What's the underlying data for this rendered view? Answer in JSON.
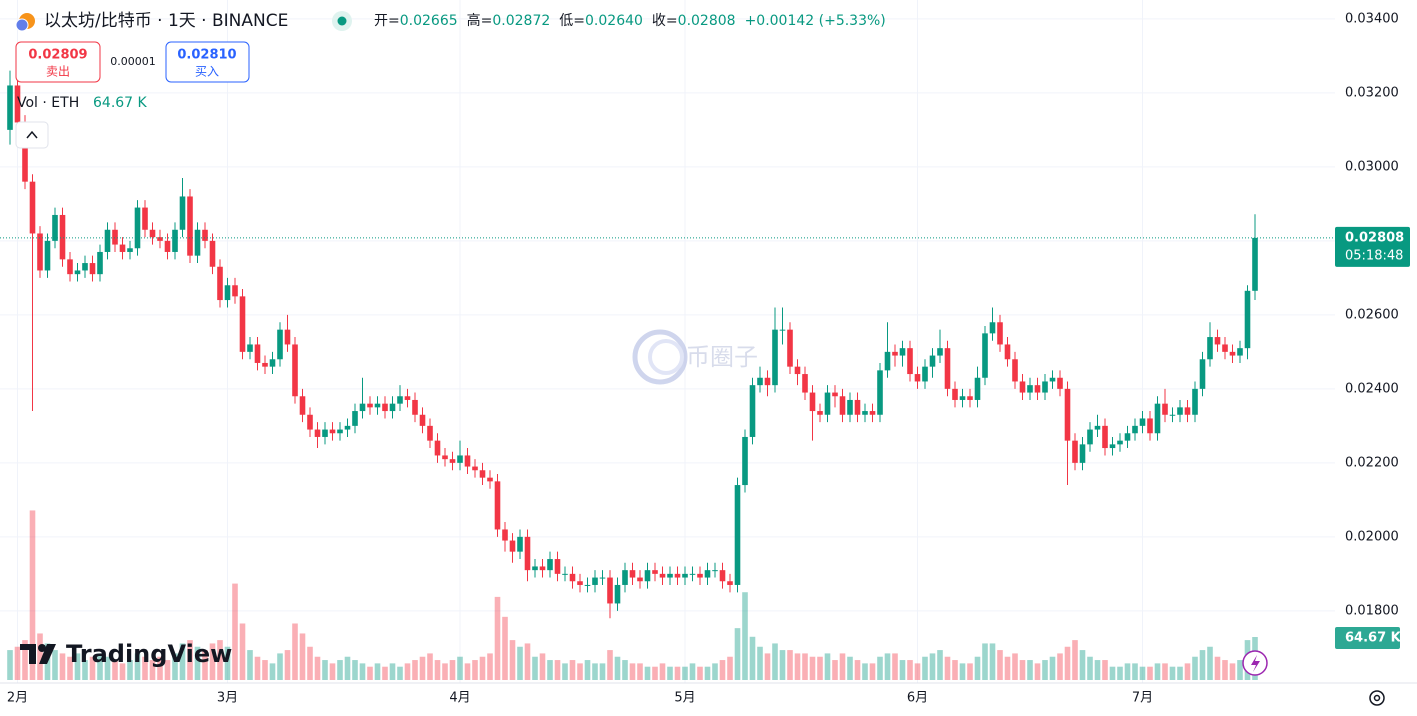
{
  "header": {
    "symbol": "以太坊/比特币 · 1天 · BINANCE",
    "ohlc": [
      {
        "label": "开=",
        "value": "0.02665"
      },
      {
        "label": "高=",
        "value": "0.02872"
      },
      {
        "label": "低=",
        "value": "0.02640"
      },
      {
        "label": "收=",
        "value": "0.02808"
      }
    ],
    "change": "+0.00142 (+5.33%)",
    "sell": {
      "price": "0.02809",
      "label": "卖出"
    },
    "spread": "0.00001",
    "buy": {
      "price": "0.02810",
      "label": "买入"
    }
  },
  "watermark": "币圈子",
  "brand": "TradingView",
  "chart_data": {
    "type": "candlestick",
    "ylim": [
      0.01605,
      0.03451
    ],
    "yticks": [
      {
        "value": 0.034,
        "label": "0.03400"
      },
      {
        "value": 0.032,
        "label": "0.03200"
      },
      {
        "value": 0.03,
        "label": "0.03000"
      },
      {
        "value": 0.028,
        "label": "0.02800"
      },
      {
        "value": 0.026,
        "label": "0.02600"
      },
      {
        "value": 0.024,
        "label": "0.02400"
      },
      {
        "value": 0.022,
        "label": "0.02200"
      },
      {
        "value": 0.02,
        "label": "0.02000"
      },
      {
        "value": 0.018,
        "label": "0.01800"
      }
    ],
    "xticks": [
      {
        "value": 1,
        "label": "2月"
      },
      {
        "value": 29,
        "label": "3月"
      },
      {
        "value": 60,
        "label": "4月"
      },
      {
        "value": 90,
        "label": "5月"
      },
      {
        "value": 121,
        "label": "6月"
      },
      {
        "value": 151,
        "label": "7月"
      }
    ],
    "grid": true,
    "up_color": "#089981",
    "down_color": "#f23645",
    "countdown": "05:18:48",
    "ohlc": [
      [
        0.031,
        0.0326,
        0.0306,
        0.0322
      ],
      [
        0.0322,
        0.0324,
        0.031,
        0.0312
      ],
      [
        0.0312,
        0.0314,
        0.0294,
        0.0296
      ],
      [
        0.0296,
        0.0298,
        0.0234,
        0.0282
      ],
      [
        0.0282,
        0.0284,
        0.027,
        0.0272
      ],
      [
        0.0272,
        0.0282,
        0.027,
        0.028
      ],
      [
        0.028,
        0.0289,
        0.0278,
        0.0287
      ],
      [
        0.0287,
        0.0289,
        0.0273,
        0.0275
      ],
      [
        0.0275,
        0.0277,
        0.0269,
        0.0271
      ],
      [
        0.0271,
        0.0274,
        0.0269,
        0.0272
      ],
      [
        0.0272,
        0.0276,
        0.027,
        0.0274
      ],
      [
        0.0274,
        0.0276,
        0.0269,
        0.0271
      ],
      [
        0.0271,
        0.0279,
        0.0269,
        0.0277
      ],
      [
        0.0277,
        0.0285,
        0.0275,
        0.0283
      ],
      [
        0.0283,
        0.0285,
        0.0277,
        0.0279
      ],
      [
        0.0279,
        0.0281,
        0.0275,
        0.0277
      ],
      [
        0.0277,
        0.028,
        0.0275,
        0.0278
      ],
      [
        0.0278,
        0.0291,
        0.0276,
        0.0289
      ],
      [
        0.0289,
        0.0291,
        0.0281,
        0.0283
      ],
      [
        0.0283,
        0.0285,
        0.0279,
        0.0281
      ],
      [
        0.0281,
        0.0283,
        0.0278,
        0.028
      ],
      [
        0.028,
        0.0282,
        0.0275,
        0.0277
      ],
      [
        0.0277,
        0.0285,
        0.0275,
        0.0283
      ],
      [
        0.0283,
        0.0297,
        0.0281,
        0.0292
      ],
      [
        0.0292,
        0.0294,
        0.0274,
        0.0276
      ],
      [
        0.0276,
        0.0285,
        0.0274,
        0.0283
      ],
      [
        0.0283,
        0.0285,
        0.0278,
        0.028
      ],
      [
        0.028,
        0.0282,
        0.0271,
        0.0273
      ],
      [
        0.0273,
        0.0275,
        0.0262,
        0.0264
      ],
      [
        0.0264,
        0.027,
        0.0262,
        0.0268
      ],
      [
        0.0268,
        0.027,
        0.0263,
        0.0265
      ],
      [
        0.0265,
        0.0267,
        0.0248,
        0.025
      ],
      [
        0.025,
        0.0254,
        0.0248,
        0.0252
      ],
      [
        0.0252,
        0.0254,
        0.0245,
        0.0247
      ],
      [
        0.0247,
        0.0249,
        0.0244,
        0.0246
      ],
      [
        0.0246,
        0.025,
        0.0244,
        0.0248
      ],
      [
        0.0248,
        0.0258,
        0.0246,
        0.0256
      ],
      [
        0.0256,
        0.026,
        0.025,
        0.0252
      ],
      [
        0.0252,
        0.0254,
        0.0236,
        0.0238
      ],
      [
        0.0238,
        0.024,
        0.0231,
        0.0233
      ],
      [
        0.0233,
        0.0235,
        0.0227,
        0.0229
      ],
      [
        0.0229,
        0.0231,
        0.0224,
        0.0227
      ],
      [
        0.0227,
        0.0231,
        0.0225,
        0.0229
      ],
      [
        0.0229,
        0.0231,
        0.0226,
        0.0228
      ],
      [
        0.0228,
        0.0231,
        0.0226,
        0.0229
      ],
      [
        0.0229,
        0.0232,
        0.0227,
        0.023
      ],
      [
        0.023,
        0.0236,
        0.0228,
        0.0234
      ],
      [
        0.0234,
        0.0243,
        0.0232,
        0.0236
      ],
      [
        0.0236,
        0.0238,
        0.0233,
        0.0235
      ],
      [
        0.0235,
        0.0238,
        0.0233,
        0.0236
      ],
      [
        0.0236,
        0.0238,
        0.0232,
        0.0234
      ],
      [
        0.0234,
        0.0238,
        0.0232,
        0.0236
      ],
      [
        0.0236,
        0.0241,
        0.0234,
        0.0238
      ],
      [
        0.0238,
        0.024,
        0.0235,
        0.0237
      ],
      [
        0.0237,
        0.0239,
        0.0231,
        0.0233
      ],
      [
        0.0233,
        0.0235,
        0.0228,
        0.023
      ],
      [
        0.023,
        0.0232,
        0.0224,
        0.0226
      ],
      [
        0.0226,
        0.0228,
        0.022,
        0.0222
      ],
      [
        0.0222,
        0.0224,
        0.0219,
        0.0221
      ],
      [
        0.0221,
        0.0223,
        0.0218,
        0.022
      ],
      [
        0.022,
        0.0226,
        0.0218,
        0.0222
      ],
      [
        0.0222,
        0.0224,
        0.0217,
        0.0219
      ],
      [
        0.0219,
        0.0221,
        0.0216,
        0.0218
      ],
      [
        0.0218,
        0.022,
        0.0214,
        0.0216
      ],
      [
        0.0216,
        0.0218,
        0.0213,
        0.0215
      ],
      [
        0.0215,
        0.0217,
        0.02,
        0.0202
      ],
      [
        0.0202,
        0.0204,
        0.0196,
        0.0199
      ],
      [
        0.0199,
        0.0201,
        0.0193,
        0.0196
      ],
      [
        0.0196,
        0.0202,
        0.0194,
        0.02
      ],
      [
        0.02,
        0.0202,
        0.0188,
        0.0191
      ],
      [
        0.0191,
        0.0194,
        0.0189,
        0.0192
      ],
      [
        0.0192,
        0.0194,
        0.0189,
        0.0191
      ],
      [
        0.0191,
        0.0196,
        0.0189,
        0.0194
      ],
      [
        0.0194,
        0.0196,
        0.0188,
        0.019
      ],
      [
        0.019,
        0.0192,
        0.0188,
        0.019
      ],
      [
        0.019,
        0.0192,
        0.0186,
        0.0188
      ],
      [
        0.0188,
        0.019,
        0.0185,
        0.0187
      ],
      [
        0.0187,
        0.0189,
        0.0185,
        0.0187
      ],
      [
        0.0187,
        0.0191,
        0.0185,
        0.0189
      ],
      [
        0.0189,
        0.0191,
        0.0187,
        0.0189
      ],
      [
        0.0189,
        0.0191,
        0.0178,
        0.0182
      ],
      [
        0.0182,
        0.0189,
        0.018,
        0.0187
      ],
      [
        0.0187,
        0.0193,
        0.0185,
        0.0191
      ],
      [
        0.0191,
        0.0193,
        0.0187,
        0.0189
      ],
      [
        0.0189,
        0.0191,
        0.0186,
        0.0188
      ],
      [
        0.0188,
        0.0193,
        0.0186,
        0.0191
      ],
      [
        0.0191,
        0.0193,
        0.0188,
        0.019
      ],
      [
        0.019,
        0.0192,
        0.0187,
        0.0189
      ],
      [
        0.0189,
        0.0192,
        0.0187,
        0.019
      ],
      [
        0.019,
        0.0192,
        0.0187,
        0.0189
      ],
      [
        0.0189,
        0.0192,
        0.0187,
        0.019
      ],
      [
        0.019,
        0.0192,
        0.0188,
        0.019
      ],
      [
        0.019,
        0.0192,
        0.0187,
        0.0189
      ],
      [
        0.0189,
        0.0193,
        0.0187,
        0.0191
      ],
      [
        0.0191,
        0.0193,
        0.0189,
        0.0191
      ],
      [
        0.0191,
        0.0193,
        0.0186,
        0.0188
      ],
      [
        0.0188,
        0.019,
        0.0185,
        0.0187
      ],
      [
        0.0187,
        0.0216,
        0.0185,
        0.0214
      ],
      [
        0.0214,
        0.0229,
        0.0212,
        0.0227
      ],
      [
        0.0227,
        0.0243,
        0.0225,
        0.0241
      ],
      [
        0.0241,
        0.0246,
        0.0239,
        0.0243
      ],
      [
        0.0243,
        0.0245,
        0.0238,
        0.0241
      ],
      [
        0.0241,
        0.0262,
        0.0239,
        0.0256
      ],
      [
        0.0256,
        0.0262,
        0.0252,
        0.0256
      ],
      [
        0.0256,
        0.0258,
        0.0244,
        0.0246
      ],
      [
        0.0246,
        0.0248,
        0.0241,
        0.0244
      ],
      [
        0.0244,
        0.0246,
        0.0237,
        0.0239
      ],
      [
        0.0239,
        0.0241,
        0.0226,
        0.0234
      ],
      [
        0.0234,
        0.0236,
        0.0231,
        0.0233
      ],
      [
        0.0233,
        0.0241,
        0.0231,
        0.0239
      ],
      [
        0.0239,
        0.0241,
        0.0235,
        0.0238
      ],
      [
        0.0238,
        0.024,
        0.0231,
        0.0233
      ],
      [
        0.0233,
        0.0239,
        0.0231,
        0.0237
      ],
      [
        0.0237,
        0.0239,
        0.0231,
        0.0233
      ],
      [
        0.0233,
        0.0236,
        0.0231,
        0.0234
      ],
      [
        0.0234,
        0.0236,
        0.0231,
        0.0233
      ],
      [
        0.0233,
        0.0247,
        0.0231,
        0.0245
      ],
      [
        0.0245,
        0.0258,
        0.0243,
        0.025
      ],
      [
        0.025,
        0.0252,
        0.0246,
        0.0249
      ],
      [
        0.0249,
        0.0253,
        0.0246,
        0.0251
      ],
      [
        0.0251,
        0.0253,
        0.0242,
        0.0244
      ],
      [
        0.0244,
        0.0246,
        0.024,
        0.0242
      ],
      [
        0.0242,
        0.0248,
        0.024,
        0.0246
      ],
      [
        0.0246,
        0.0251,
        0.0243,
        0.0249
      ],
      [
        0.0249,
        0.0256,
        0.0247,
        0.0251
      ],
      [
        0.0251,
        0.0253,
        0.0238,
        0.024
      ],
      [
        0.024,
        0.0242,
        0.0235,
        0.0237
      ],
      [
        0.0237,
        0.024,
        0.0235,
        0.0238
      ],
      [
        0.0238,
        0.024,
        0.0235,
        0.0237
      ],
      [
        0.0237,
        0.0246,
        0.0235,
        0.0243
      ],
      [
        0.0243,
        0.0257,
        0.0241,
        0.0255
      ],
      [
        0.0255,
        0.0262,
        0.0253,
        0.0258
      ],
      [
        0.0258,
        0.026,
        0.025,
        0.0252
      ],
      [
        0.0252,
        0.0254,
        0.0246,
        0.0248
      ],
      [
        0.0248,
        0.025,
        0.024,
        0.0242
      ],
      [
        0.0242,
        0.0244,
        0.0237,
        0.0239
      ],
      [
        0.0239,
        0.0243,
        0.0237,
        0.0241
      ],
      [
        0.0241,
        0.0243,
        0.0237,
        0.0239
      ],
      [
        0.0239,
        0.0244,
        0.0237,
        0.0242
      ],
      [
        0.0242,
        0.0245,
        0.024,
        0.0243
      ],
      [
        0.0243,
        0.0245,
        0.0238,
        0.024
      ],
      [
        0.024,
        0.0242,
        0.0214,
        0.0226
      ],
      [
        0.0226,
        0.0228,
        0.0218,
        0.022
      ],
      [
        0.022,
        0.0227,
        0.0218,
        0.0225
      ],
      [
        0.0225,
        0.0231,
        0.0223,
        0.0229
      ],
      [
        0.0229,
        0.0233,
        0.0227,
        0.023
      ],
      [
        0.023,
        0.0232,
        0.0222,
        0.0224
      ],
      [
        0.0224,
        0.0227,
        0.0222,
        0.0225
      ],
      [
        0.0225,
        0.0228,
        0.0223,
        0.0226
      ],
      [
        0.0226,
        0.023,
        0.0224,
        0.0228
      ],
      [
        0.0228,
        0.0232,
        0.0226,
        0.023
      ],
      [
        0.023,
        0.0234,
        0.0228,
        0.0232
      ],
      [
        0.0232,
        0.0234,
        0.0226,
        0.0228
      ],
      [
        0.0228,
        0.0238,
        0.0226,
        0.0236
      ],
      [
        0.0236,
        0.024,
        0.0231,
        0.0233
      ],
      [
        0.0233,
        0.0235,
        0.0231,
        0.0233
      ],
      [
        0.0233,
        0.0237,
        0.0231,
        0.0235
      ],
      [
        0.0235,
        0.0237,
        0.0231,
        0.0233
      ],
      [
        0.0233,
        0.0242,
        0.0231,
        0.024
      ],
      [
        0.024,
        0.025,
        0.0238,
        0.0248
      ],
      [
        0.0248,
        0.0258,
        0.0246,
        0.0254
      ],
      [
        0.0254,
        0.0256,
        0.025,
        0.0252
      ],
      [
        0.0252,
        0.0254,
        0.0248,
        0.025
      ],
      [
        0.025,
        0.0252,
        0.0247,
        0.0249
      ],
      [
        0.0249,
        0.0253,
        0.0247,
        0.0251
      ],
      [
        0.0251,
        0.0268,
        0.0248,
        0.02665
      ],
      [
        0.02665,
        0.02872,
        0.0264,
        0.02808
      ]
    ],
    "volume": {
      "name": "Vol · ETH",
      "last_label": "64.67 K",
      "values": [
        45,
        50,
        60,
        255,
        70,
        55,
        45,
        40,
        35,
        40,
        30,
        35,
        40,
        35,
        30,
        25,
        30,
        40,
        35,
        30,
        35,
        30,
        40,
        55,
        60,
        50,
        45,
        55,
        60,
        50,
        145,
        85,
        45,
        35,
        30,
        25,
        40,
        45,
        85,
        70,
        50,
        35,
        30,
        25,
        30,
        35,
        30,
        25,
        20,
        25,
        20,
        25,
        20,
        25,
        30,
        35,
        40,
        30,
        25,
        30,
        35,
        25,
        30,
        35,
        40,
        125,
        95,
        60,
        50,
        55,
        35,
        40,
        30,
        30,
        25,
        30,
        25,
        30,
        25,
        25,
        45,
        35,
        30,
        25,
        25,
        20,
        20,
        25,
        20,
        20,
        20,
        25,
        20,
        20,
        25,
        30,
        35,
        78,
        132,
        65,
        50,
        40,
        55,
        45,
        45,
        40,
        40,
        35,
        35,
        40,
        30,
        40,
        35,
        30,
        25,
        25,
        35,
        40,
        40,
        30,
        30,
        25,
        35,
        40,
        45,
        35,
        30,
        25,
        25,
        35,
        55,
        55,
        45,
        35,
        40,
        30,
        30,
        25,
        30,
        35,
        40,
        50,
        60,
        45,
        35,
        30,
        30,
        20,
        20,
        25,
        25,
        20,
        20,
        25,
        25,
        20,
        20,
        25,
        35,
        45,
        50,
        35,
        30,
        25,
        30,
        60,
        64.67
      ]
    }
  }
}
